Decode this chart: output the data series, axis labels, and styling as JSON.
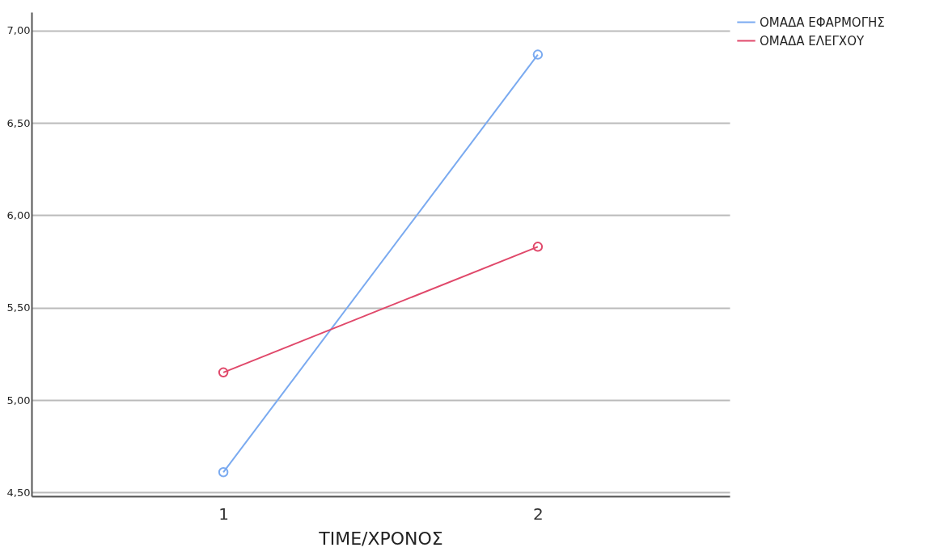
{
  "chart_data": {
    "type": "line",
    "xlabel": "TIME/ΧΡΟΝΟΣ",
    "categories": [
      "1",
      "2"
    ],
    "series": [
      {
        "name": "ΟΜΑΔΑ ΕΦΑΡΜΟΓΗΣ",
        "color": "#7aaaf0",
        "values": [
          4.61,
          6.87
        ]
      },
      {
        "name": "ΟΜΑΔΑ ΕΛΕΓΧΟΥ",
        "color": "#e0486a",
        "values": [
          5.15,
          5.83
        ]
      }
    ],
    "ylim": [
      4.48,
      7.1
    ],
    "yticks": [
      {
        "value": 4.5,
        "label": "4,50"
      },
      {
        "value": 5,
        "label": "5,00"
      },
      {
        "value": 5.5,
        "label": "5,50"
      },
      {
        "value": 6,
        "label": "6,00"
      },
      {
        "value": 6.5,
        "label": "6,50"
      },
      {
        "value": 7,
        "label": "7,00"
      }
    ],
    "grid": "y",
    "legend": "top right",
    "marker": "circle",
    "line_style": "solid"
  }
}
